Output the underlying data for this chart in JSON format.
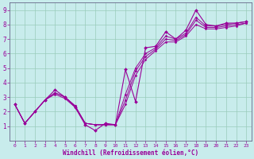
{
  "xlabel": "Windchill (Refroidissement éolien,°C)",
  "bg_color": "#c8ecec",
  "line_color": "#990099",
  "grid_color": "#99ccbb",
  "xlim": [
    -0.5,
    23.5
  ],
  "ylim": [
    0,
    9.5
  ],
  "xticks": [
    0,
    1,
    2,
    3,
    4,
    5,
    6,
    7,
    8,
    9,
    10,
    11,
    12,
    13,
    14,
    15,
    16,
    17,
    18,
    19,
    20,
    21,
    22,
    23
  ],
  "yticks": [
    1,
    2,
    3,
    4,
    5,
    6,
    7,
    8,
    9
  ],
  "series": [
    {
      "x": [
        0,
        1,
        2,
        3,
        4,
        5,
        6,
        7,
        8,
        9,
        10,
        11,
        12,
        13,
        14,
        15,
        16,
        17,
        18,
        19,
        20,
        21,
        22,
        23
      ],
      "y": [
        2.5,
        1.2,
        2.0,
        2.8,
        3.5,
        3.0,
        2.3,
        1.1,
        0.7,
        1.2,
        1.1,
        4.9,
        2.7,
        6.4,
        6.5,
        7.5,
        7.0,
        7.6,
        9.0,
        8.0,
        7.9,
        8.1,
        8.1,
        8.2
      ],
      "has_markers": true
    },
    {
      "x": [
        0,
        1,
        2,
        3,
        4,
        5,
        6,
        7,
        8,
        9,
        10,
        11,
        12,
        13,
        14,
        15,
        16,
        17,
        18,
        19,
        20,
        21,
        22,
        23
      ],
      "y": [
        2.5,
        1.2,
        2.0,
        2.8,
        3.2,
        2.9,
        2.3,
        1.2,
        1.1,
        1.1,
        1.1,
        3.2,
        5.0,
        6.0,
        6.4,
        7.2,
        7.0,
        7.4,
        8.5,
        7.9,
        7.9,
        8.0,
        8.1,
        8.2
      ],
      "has_markers": false
    },
    {
      "x": [
        0,
        1,
        2,
        3,
        4,
        5,
        6,
        7,
        8,
        9,
        10,
        11,
        12,
        13,
        14,
        15,
        16,
        17,
        18,
        19,
        20,
        21,
        22,
        23
      ],
      "y": [
        2.5,
        1.2,
        2.0,
        2.8,
        3.3,
        3.0,
        2.4,
        1.2,
        1.1,
        1.1,
        1.1,
        2.8,
        4.8,
        5.8,
        6.3,
        7.0,
        6.9,
        7.3,
        8.3,
        7.8,
        7.8,
        7.9,
        8.0,
        8.1
      ],
      "has_markers": false
    },
    {
      "x": [
        0,
        1,
        2,
        3,
        4,
        5,
        6,
        7,
        8,
        9,
        10,
        11,
        12,
        13,
        14,
        15,
        16,
        17,
        18,
        19,
        20,
        21,
        22,
        23
      ],
      "y": [
        2.5,
        1.2,
        2.0,
        2.8,
        3.3,
        3.0,
        2.4,
        1.2,
        1.1,
        1.1,
        1.1,
        2.5,
        4.5,
        5.6,
        6.2,
        6.8,
        6.8,
        7.2,
        8.0,
        7.7,
        7.7,
        7.8,
        7.9,
        8.1
      ],
      "has_markers": false
    }
  ]
}
